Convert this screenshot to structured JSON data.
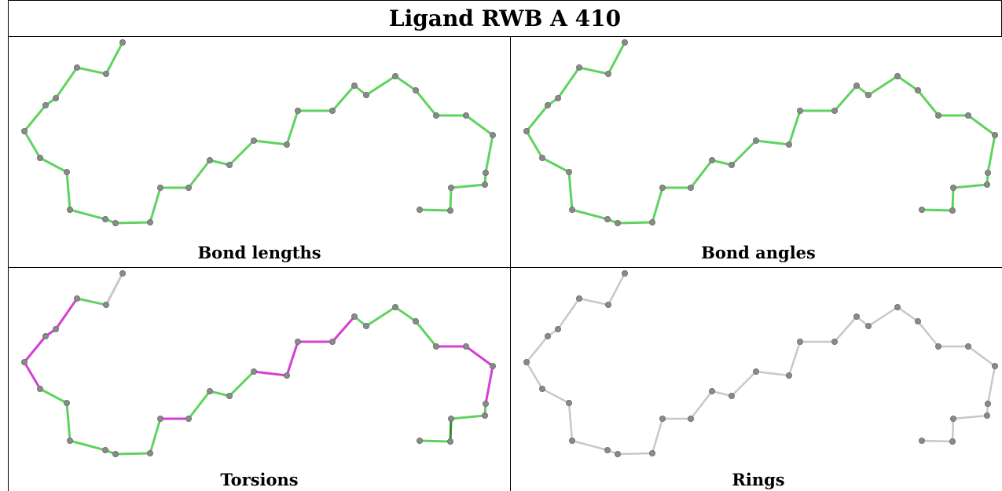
{
  "title": "Ligand RWB A 410",
  "panels": [
    {
      "id": "bond-lengths",
      "label": "Bond lengths"
    },
    {
      "id": "bond-angles",
      "label": "Bond angles"
    },
    {
      "id": "torsions",
      "label": "Torsions"
    },
    {
      "id": "rings",
      "label": "Rings"
    }
  ],
  "colors": {
    "bond_ok": "#5fd35f",
    "bond_ok_dark": "#2e8b2e",
    "torsion_outlier": "#d43fd4",
    "neutral": "#c8c8c8",
    "atom": "#8a8a8a"
  }
}
